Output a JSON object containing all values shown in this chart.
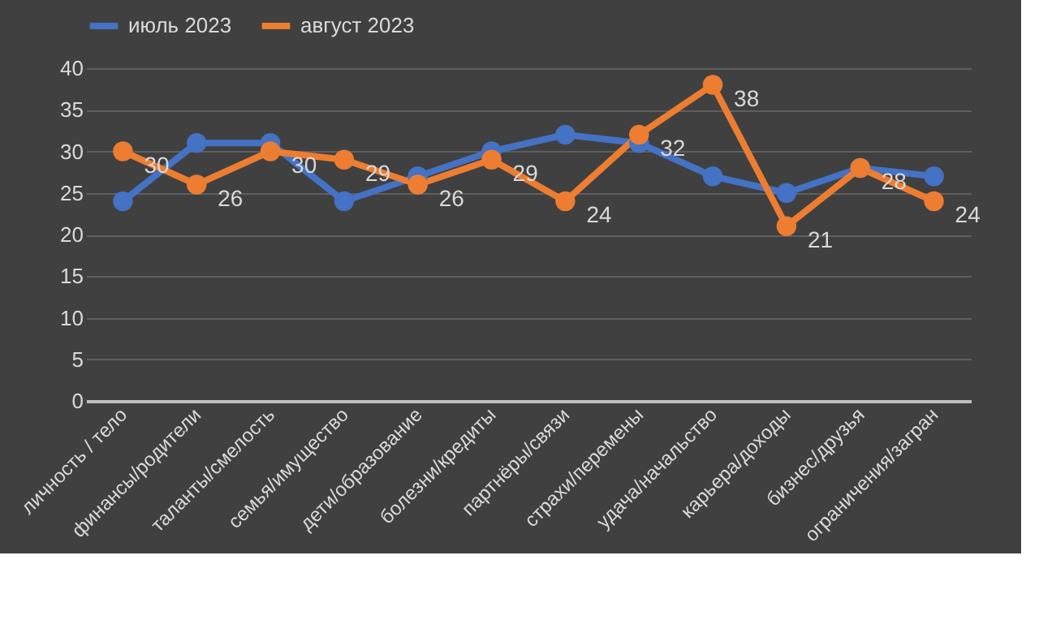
{
  "chart_data": {
    "type": "line",
    "categories": [
      "личность / тело",
      "финансы/родители",
      "таланты/смелость",
      "семья/имущество",
      "дети/образование",
      "болезни/кредиты",
      "партнёры/связи",
      "страхи/перемены",
      "удача/начальство",
      "карьера/доходы",
      "бизнес/друзья",
      "ограничения/загран"
    ],
    "series": [
      {
        "name": "июль 2023",
        "color": "#4472c4",
        "values": [
          24,
          31,
          31,
          24,
          27,
          30,
          32,
          31,
          27,
          25,
          28,
          27
        ]
      },
      {
        "name": "август 2023",
        "color": "#ed7d31",
        "values": [
          30,
          26,
          30,
          29,
          26,
          29,
          24,
          32,
          38,
          21,
          28,
          24
        ],
        "value_labels": [
          "30",
          "26",
          "30",
          "29",
          "26",
          "29",
          "24",
          "32",
          "38",
          "21",
          "28",
          "24"
        ]
      }
    ],
    "ylim": [
      0,
      40
    ],
    "yticks": [
      0,
      5,
      10,
      15,
      20,
      25,
      30,
      35,
      40
    ],
    "grid": "y",
    "legend": "top",
    "marker": "circle",
    "line_style": "solid"
  }
}
